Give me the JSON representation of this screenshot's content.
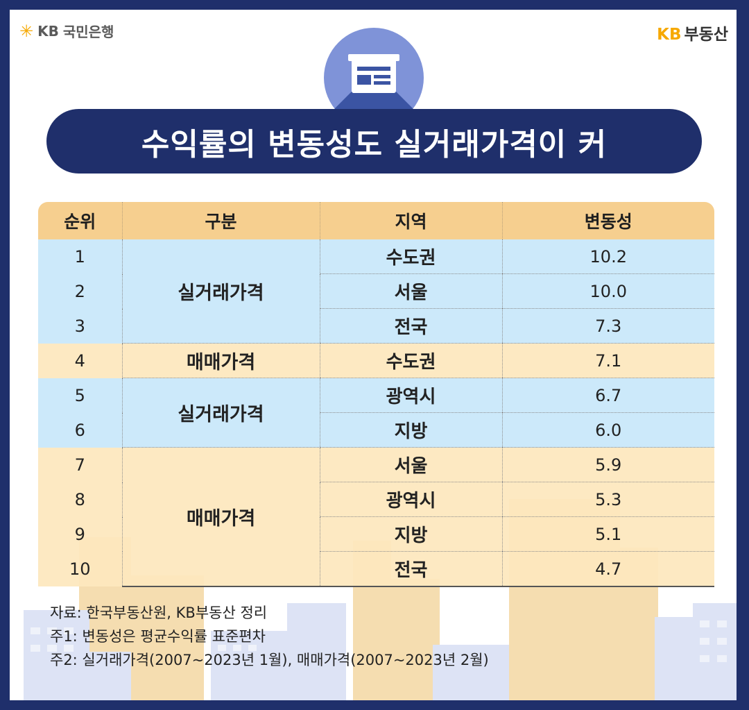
{
  "header": {
    "bank_logo_mark": "✳",
    "bank_logo_kb": "KB",
    "bank_logo_text": "국민은행",
    "re_logo_kb": "KB",
    "re_logo_text": "부동산"
  },
  "title": "수익률의 변동성도 실거래가격이 커",
  "table": {
    "headers": [
      "순위",
      "구분",
      "지역",
      "변동성"
    ],
    "groups": [
      {
        "category": "실거래가격",
        "rows": [
          {
            "rank": "1",
            "region": "수도권",
            "value": "10.2"
          },
          {
            "rank": "2",
            "region": "서울",
            "value": "10.0"
          },
          {
            "rank": "3",
            "region": "전국",
            "value": "7.3"
          }
        ]
      },
      {
        "category": "매매가격",
        "rows": [
          {
            "rank": "4",
            "region": "수도권",
            "value": "7.1"
          }
        ]
      },
      {
        "category": "실거래가격",
        "rows": [
          {
            "rank": "5",
            "region": "광역시",
            "value": "6.7"
          },
          {
            "rank": "6",
            "region": "지방",
            "value": "6.0"
          }
        ]
      },
      {
        "category": "매매가격",
        "rows": [
          {
            "rank": "7",
            "region": "서울",
            "value": "5.9"
          },
          {
            "rank": "8",
            "region": "광역시",
            "value": "5.3"
          },
          {
            "rank": "9",
            "region": "지방",
            "value": "5.1"
          },
          {
            "rank": "10",
            "region": "전국",
            "value": "4.7"
          }
        ]
      }
    ]
  },
  "notes": [
    "자료: 한국부동산원, KB부동산 정리",
    "주1: 변동성은 평균수익률 표준편차",
    "주2: 실거래가격(2007~2023년 1월), 매매가격(2007~2023년 2월)"
  ],
  "colors": {
    "navy": "#1f2f6b",
    "header_row": "#f6cf8f",
    "blue_row": "#c9e8fa",
    "yellow_row": "#fde7bd",
    "kb_yellow": "#f6a800"
  }
}
